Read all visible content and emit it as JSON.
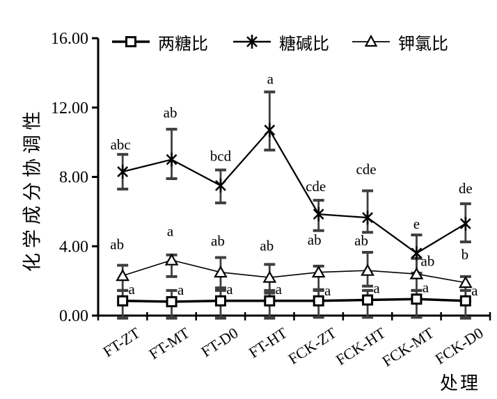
{
  "chart_data": {
    "type": "line",
    "title": "",
    "xlabel": "处理",
    "ylabel": "化学成分协调性",
    "ylim": [
      0,
      16
    ],
    "yticks": [
      0,
      4,
      8,
      12,
      16
    ],
    "ytick_labels": [
      "0.00",
      "4.00",
      "8.00",
      "12.00",
      "16.00"
    ],
    "grid": false,
    "legend_position": "top",
    "categories": [
      "FT-ZT",
      "FT-MT",
      "FT-D0",
      "FT-HT",
      "FCK-ZT",
      "FCK-HT",
      "FCK-MT",
      "FCK-D0"
    ],
    "series": [
      {
        "name": "两糖比",
        "marker": "open-square",
        "values": [
          0.85,
          0.8,
          0.85,
          0.85,
          0.85,
          0.9,
          0.95,
          0.85
        ],
        "error_low": [
          -0.15,
          -0.15,
          -0.15,
          -0.15,
          -0.1,
          -0.1,
          -0.1,
          -0.15
        ],
        "error_high": [
          1.45,
          1.45,
          1.45,
          1.45,
          1.45,
          1.45,
          1.45,
          1.45
        ],
        "letters": [
          "a",
          "a",
          "a",
          "a",
          "a",
          "a",
          "a",
          "a"
        ]
      },
      {
        "name": "糖碱比",
        "marker": "asterisk",
        "values": [
          8.3,
          9.0,
          7.5,
          10.7,
          5.85,
          5.65,
          3.6,
          5.3
        ],
        "error_low": [
          7.3,
          7.9,
          6.5,
          9.55,
          4.9,
          4.8,
          2.45,
          4.25
        ],
        "error_high": [
          9.3,
          10.75,
          8.4,
          12.9,
          6.65,
          7.2,
          4.65,
          6.45
        ],
        "letters": [
          "abc",
          "ab",
          "bcd",
          "a",
          "cde",
          "cde",
          "e",
          "de"
        ]
      },
      {
        "name": "钾氯比",
        "marker": "open-triangle",
        "values": [
          2.3,
          3.2,
          2.5,
          2.2,
          2.5,
          2.6,
          2.4,
          1.9
        ],
        "error_low": [
          1.45,
          2.25,
          1.6,
          1.3,
          1.5,
          1.7,
          1.45,
          0.85
        ],
        "error_high": [
          2.9,
          3.5,
          3.35,
          2.95,
          2.85,
          3.65,
          3.3,
          2.25
        ],
        "letters": [
          "ab",
          "a",
          "ab",
          "ab",
          "ab",
          "ab",
          "ab",
          "b"
        ]
      }
    ]
  },
  "colors": {
    "foreground": "#000000",
    "error_bar": "#3f3f3f",
    "background": "#ffffff"
  }
}
